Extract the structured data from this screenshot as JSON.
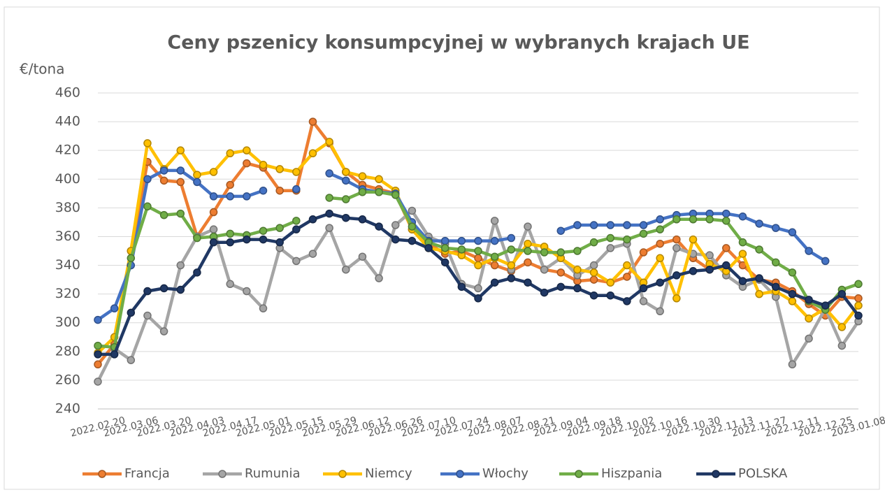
{
  "chart_data": {
    "type": "line",
    "title": "Ceny pszenicy konsumpcyjnej w wybranych krajach UE",
    "y_label": "€/tona",
    "categories": [
      "2022.02.20",
      null,
      "2022.03.06",
      null,
      "2022.03.20",
      null,
      "2022.04.03",
      null,
      "2022.04.17",
      null,
      "2022.05.01",
      null,
      "2022.05.15",
      null,
      "2022.05.29",
      null,
      "2022.06.12",
      null,
      "2022.06.26",
      null,
      "2022.07.10",
      null,
      "2022.07.24",
      null,
      "2022.08.07",
      null,
      "2022.08.21",
      null,
      "2022.09.04",
      null,
      "2022.09.18",
      null,
      "2022.10.02",
      null,
      "2022.10.16",
      null,
      "2022.10.30",
      null,
      "2022.11.13",
      null,
      "2022.11.27",
      null,
      "2022.12.11",
      null,
      "2022.12.25",
      null,
      "2023.01.08"
    ],
    "ylim": [
      240,
      460
    ],
    "yticks": [
      240,
      260,
      280,
      300,
      320,
      340,
      360,
      380,
      400,
      420,
      440,
      460
    ],
    "grid": true,
    "legend": "bottom",
    "series": [
      {
        "name": "Francja",
        "color": "#ed7d31",
        "values": [
          271,
          285,
          350,
          412,
          399,
          398,
          360,
          377,
          396,
          411,
          408,
          392,
          392,
          440,
          425,
          405,
          396,
          393,
          390,
          365,
          355,
          348,
          350,
          345,
          340,
          336,
          342,
          337,
          335,
          329,
          330,
          328,
          332,
          349,
          355,
          358,
          345,
          337,
          352,
          340,
          330,
          328,
          322,
          313,
          305,
          318,
          317
        ]
      },
      {
        "name": "Rumunia",
        "color": "#a5a5a5",
        "values": [
          259,
          282,
          274,
          305,
          294,
          340,
          360,
          365,
          327,
          322,
          310,
          352,
          343,
          348,
          366,
          337,
          346,
          331,
          368,
          378,
          360,
          355,
          327,
          324,
          371,
          337,
          367,
          337,
          345,
          333,
          340,
          352,
          355,
          315,
          308,
          352,
          348,
          347,
          333,
          325,
          330,
          318,
          271,
          289,
          310,
          284,
          301
        ]
      },
      {
        "name": "Niemcy",
        "color": "#ffc000",
        "values": [
          279,
          290,
          350,
          425,
          407,
          420,
          403,
          405,
          418,
          420,
          410,
          407,
          405,
          418,
          426,
          405,
          402,
          400,
          392,
          365,
          352,
          350,
          347,
          340,
          345,
          340,
          355,
          353,
          345,
          337,
          335,
          328,
          340,
          328,
          345,
          317,
          358,
          341,
          336,
          348,
          320,
          322,
          315,
          303,
          310,
          297,
          312
        ]
      },
      {
        "name": "Włochy",
        "color": "#4472c4",
        "values": [
          302,
          310,
          340,
          400,
          406,
          406,
          398,
          388,
          388,
          388,
          392,
          null,
          393,
          null,
          404,
          399,
          393,
          391,
          390,
          370,
          357,
          357,
          357,
          357,
          357,
          359,
          null,
          null,
          364,
          368,
          368,
          368,
          368,
          368,
          372,
          375,
          376,
          376,
          376,
          374,
          369,
          366,
          363,
          350,
          343,
          null,
          null
        ]
      },
      {
        "name": "Hiszpania",
        "color": "#70ad47",
        "values": [
          284,
          283,
          345,
          381,
          375,
          376,
          359,
          360,
          362,
          361,
          364,
          366,
          371,
          null,
          387,
          386,
          391,
          391,
          389,
          367,
          356,
          352,
          351,
          350,
          346,
          351,
          350,
          349,
          349,
          350,
          356,
          359,
          358,
          362,
          365,
          372,
          372,
          372,
          371,
          356,
          351,
          342,
          335,
          315,
          309,
          323,
          327
        ]
      },
      {
        "name": "POLSKA",
        "color": "#203864",
        "values": [
          278,
          278,
          307,
          322,
          324,
          323,
          335,
          356,
          356,
          358,
          358,
          356,
          365,
          372,
          376,
          373,
          372,
          367,
          358,
          357,
          352,
          342,
          325,
          317,
          328,
          331,
          328,
          321,
          325,
          324,
          319,
          319,
          315,
          324,
          328,
          333,
          336,
          337,
          340,
          329,
          331,
          325,
          320,
          316,
          312,
          320,
          305
        ]
      }
    ]
  }
}
